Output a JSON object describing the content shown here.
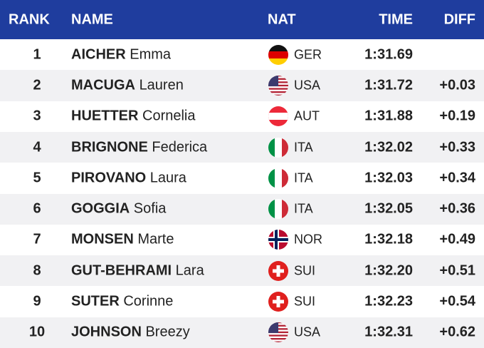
{
  "table": {
    "header": [
      "RANK",
      "NAME",
      "NAT",
      "TIME",
      "DIFF"
    ],
    "rows": [
      {
        "rank": "1",
        "surname": "AICHER",
        "first_name": "Emma",
        "nat": "GER",
        "time": "1:31.69"
      },
      {
        "rank": "2",
        "surname": "MACUGA",
        "first_name": "Lauren",
        "nat": "USA",
        "time": "1:31.72",
        "diff": "+0.03"
      },
      {
        "rank": "3",
        "surname": "HUETTER",
        "first_name": "Cornelia",
        "nat": "AUT",
        "time": "1:31.88",
        "diff": "+0.19"
      },
      {
        "rank": "4",
        "surname": "BRIGNONE",
        "first_name": "Federica",
        "nat": "ITA",
        "time": "1:32.02",
        "diff": "+0.33"
      },
      {
        "rank": "5",
        "surname": "PIROVANO",
        "first_name": "Laura",
        "nat": "ITA",
        "time": "1:32.03",
        "diff": "+0.34"
      },
      {
        "rank": "6",
        "surname": "GOGGIA",
        "first_name": "Sofia",
        "nat": "ITA",
        "time": "1:32.05",
        "diff": "+0.36"
      },
      {
        "rank": "7",
        "surname": "MONSEN",
        "first_name": "Marte",
        "nat": "NOR",
        "time": "1:32.18",
        "diff": "+0.49"
      },
      {
        "rank": "8",
        "surname": "GUT-BEHRAMI",
        "first_name": "Lara",
        "nat": "SUI",
        "time": "1:32.20",
        "diff": "+0.51"
      },
      {
        "rank": "9",
        "surname": "SUTER",
        "first_name": "Corinne",
        "nat": "SUI",
        "time": "1:32.23",
        "diff": "+0.54"
      },
      {
        "rank": "10",
        "surname": "JOHNSON",
        "first_name": "Breezy",
        "nat": "USA",
        "time": "1:32.31",
        "diff": "+0.62"
      }
    ]
  }
}
